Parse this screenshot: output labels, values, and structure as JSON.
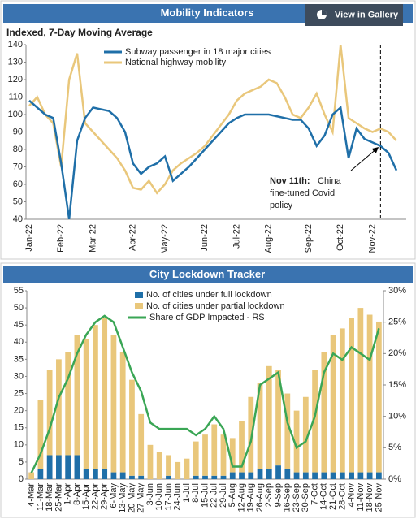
{
  "button": "View in Gallery",
  "chart_data": [
    {
      "type": "line",
      "title": "Mobility Indicators",
      "subtitle": "Indexed, 7-Day Moving Average",
      "categories": [
        "Jan-22",
        null,
        null,
        null,
        "Feb-22",
        null,
        null,
        null,
        "Mar-22",
        null,
        null,
        null,
        null,
        "Apr-22",
        null,
        null,
        null,
        "May-22",
        null,
        null,
        null,
        null,
        "Jun-22",
        null,
        null,
        null,
        "Jul-22",
        null,
        null,
        null,
        "Aug-22",
        null,
        null,
        null,
        null,
        "Sep-22",
        null,
        null,
        null,
        "Oct-22",
        null,
        null,
        null,
        "Nov-22",
        null,
        null,
        null
      ],
      "series": [
        {
          "name": "Subway passenger in 18 major cities",
          "color": "#1f6fa8",
          "values": [
            108,
            104,
            100,
            98,
            72,
            40,
            85,
            98,
            104,
            103,
            102,
            98,
            90,
            72,
            66,
            70,
            72,
            76,
            62,
            66,
            70,
            75,
            80,
            85,
            90,
            95,
            98,
            100,
            100,
            100,
            100,
            99,
            98,
            97,
            97,
            92,
            82,
            88,
            100,
            104,
            75,
            92,
            86,
            84,
            82,
            78,
            68
          ]
        },
        {
          "name": "National highway mobility",
          "color": "#e9c77b",
          "values": [
            105,
            110,
            100,
            95,
            70,
            120,
            135,
            95,
            90,
            85,
            80,
            75,
            68,
            58,
            57,
            62,
            55,
            60,
            68,
            72,
            75,
            78,
            82,
            88,
            94,
            100,
            108,
            112,
            114,
            116,
            120,
            118,
            110,
            100,
            98,
            104,
            112,
            100,
            90,
            140,
            98,
            95,
            92,
            90,
            92,
            90,
            85
          ]
        }
      ],
      "ylim": [
        40,
        140
      ],
      "yticks": [
        40,
        50,
        60,
        70,
        80,
        90,
        100,
        110,
        120,
        130,
        140
      ],
      "grid": false,
      "annotation": {
        "index": 44,
        "bold": "Nov 11th:",
        "lines": [
          "China",
          "fine-tuned  Covid",
          "policy"
        ]
      }
    },
    {
      "type": "combo",
      "title": "City Lockdown Tracker",
      "categories": [
        "4-Mar",
        "11-Mar",
        "18-Mar",
        "25-Mar",
        "1-Apr",
        "8-Apr",
        "15-Apr",
        "22-Apr",
        "29-Apr",
        "6-May",
        "13-May",
        "20-May",
        "27-May",
        "3-Jun",
        "10-Jun",
        "17-Jun",
        "24-Jun",
        "1-Jul",
        "8-Jul",
        "15-Jul",
        "22-Jul",
        "29-Jul",
        "5-Aug",
        "12-Aug",
        "19-Aug",
        "26-Aug",
        "2-Sep",
        "9-Sep",
        "16-Sep",
        "23-Sep",
        "30-Sep",
        "7-Oct",
        "14-Oct",
        "21-Oct",
        "28-Oct",
        "4-Nov",
        "11-Nov",
        "18-Nov",
        "25-Nov"
      ],
      "series": [
        {
          "name": "No. of cities under full lockdown",
          "color": "#1f6fa8",
          "kind": "bar",
          "values": [
            0,
            3,
            7,
            7,
            7,
            7,
            3,
            3,
            3,
            2,
            2,
            1,
            1,
            0,
            0,
            1,
            0,
            0,
            1,
            1,
            1,
            1,
            2,
            2,
            2,
            3,
            3,
            4,
            3,
            2,
            2,
            2,
            2,
            2,
            2,
            2,
            2,
            2,
            2
          ]
        },
        {
          "name": "No. of cities under partial lockdown",
          "color": "#e9c77b",
          "kind": "bar",
          "values": [
            2,
            20,
            25,
            28,
            30,
            35,
            38,
            42,
            44,
            40,
            35,
            28,
            18,
            10,
            8,
            6,
            5,
            6,
            10,
            12,
            15,
            12,
            10,
            15,
            22,
            25,
            30,
            28,
            22,
            18,
            22,
            30,
            35,
            40,
            42,
            45,
            48,
            46,
            44
          ]
        },
        {
          "name": "Share of GDP Impacted - RS",
          "color": "#3aa655",
          "kind": "line",
          "axis": "y2",
          "values": [
            1,
            4,
            8,
            13,
            16,
            20,
            23,
            25,
            26,
            25,
            21,
            17,
            14,
            9,
            8,
            8,
            8,
            8,
            7,
            8,
            10,
            8,
            2,
            2,
            6,
            15,
            16,
            17,
            9,
            5,
            6,
            10,
            17,
            20,
            19,
            21,
            20,
            19,
            24
          ]
        }
      ],
      "ylim": [
        0,
        55
      ],
      "yticks": [
        0,
        5,
        10,
        15,
        20,
        25,
        30,
        35,
        40,
        45,
        50,
        55
      ],
      "y2lim": [
        0,
        30
      ],
      "y2ticks": [
        {
          "value": 0,
          "label": "0%"
        },
        {
          "value": 5,
          "label": "5%"
        },
        {
          "value": 10,
          "label": "10%"
        },
        {
          "value": 15,
          "label": "15%"
        },
        {
          "value": 20,
          "label": "20%"
        },
        {
          "value": 25,
          "label": "25%"
        },
        {
          "value": 30,
          "label": "30%"
        }
      ],
      "grid": false
    }
  ]
}
